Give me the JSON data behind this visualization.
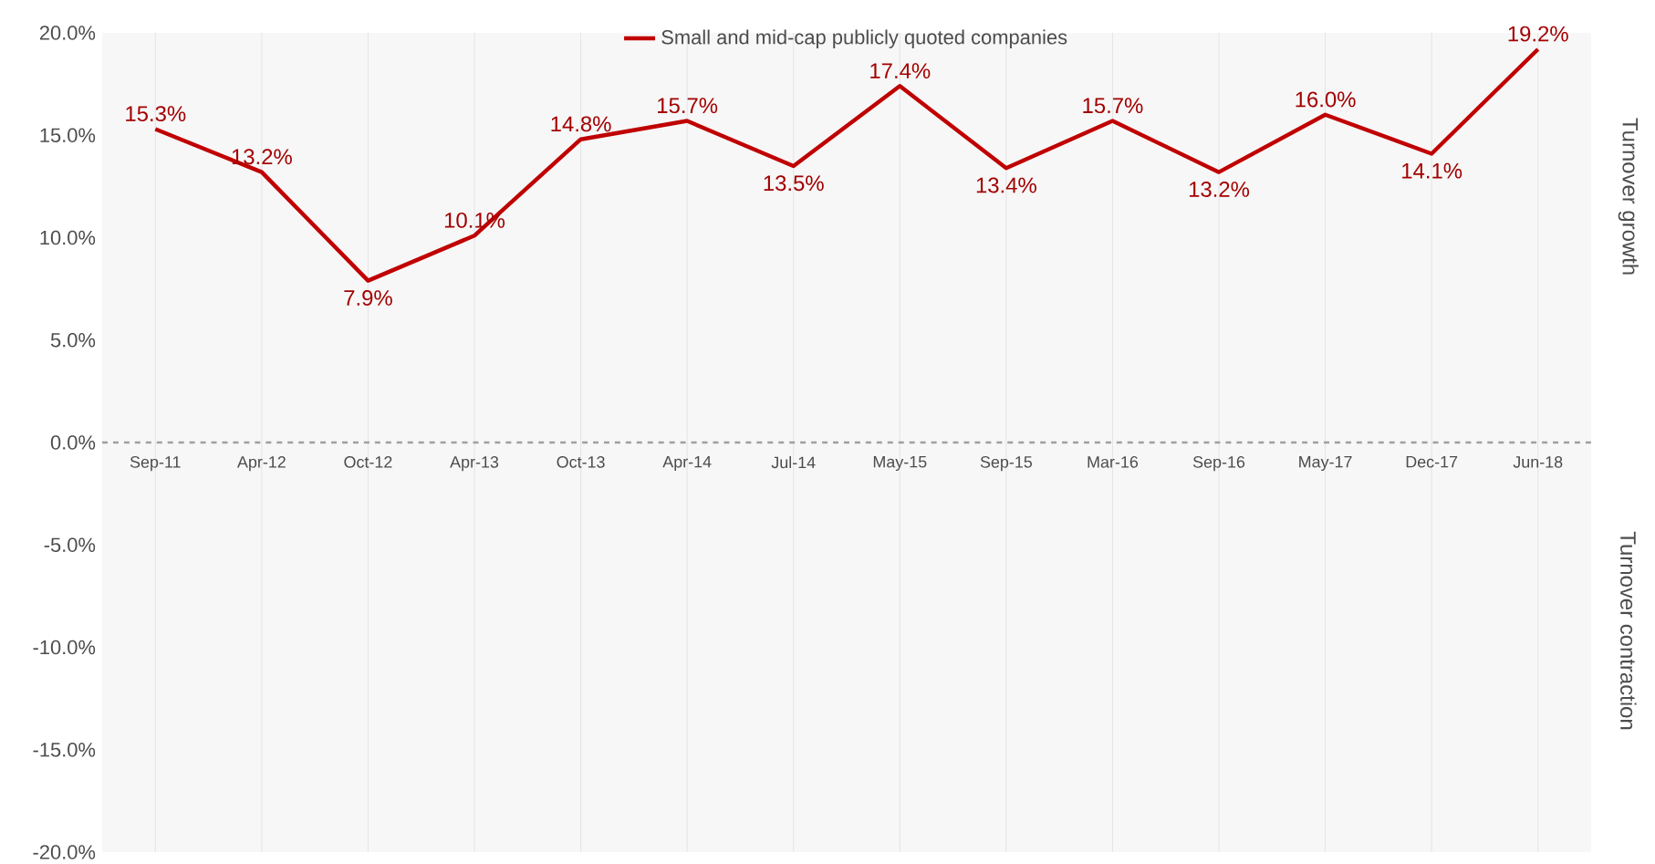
{
  "chart_data": {
    "type": "line",
    "categories": [
      "Sep-11",
      "Apr-12",
      "Oct-12",
      "Apr-13",
      "Oct-13",
      "Apr-14",
      "Jul-14",
      "May-15",
      "Sep-15",
      "Mar-16",
      "Sep-16",
      "May-17",
      "Dec-17",
      "Jun-18"
    ],
    "series": [
      {
        "name": "Small and mid-cap publicly quoted companies",
        "color": "#c00000",
        "values": [
          15.3,
          13.2,
          7.9,
          10.1,
          14.8,
          15.7,
          13.5,
          17.4,
          13.4,
          15.7,
          13.2,
          16.0,
          14.1,
          19.2
        ],
        "value_labels": [
          "15.3%",
          "13.2%",
          "7.9%",
          "10.1%",
          "14.8%",
          "15.7%",
          "13.5%",
          "17.4%",
          "13.4%",
          "15.7%",
          "13.2%",
          "16.0%",
          "14.1%",
          "19.2%"
        ]
      }
    ],
    "ylim": [
      -20,
      20
    ],
    "yticks": [
      {
        "value": -20,
        "label": "-20.0%"
      },
      {
        "value": -15,
        "label": "-15.0%"
      },
      {
        "value": -10,
        "label": "-10.0%"
      },
      {
        "value": -5,
        "label": "-5.0%"
      },
      {
        "value": 0,
        "label": "0.0%"
      },
      {
        "value": 5,
        "label": "5.0%"
      },
      {
        "value": 10,
        "label": "10.0%"
      },
      {
        "value": 15,
        "label": "15.0%"
      },
      {
        "value": 20,
        "label": "20.0%"
      }
    ],
    "grid": "x",
    "legend": "top",
    "marker": "none",
    "line_style": "solid",
    "ref_lines": [
      {
        "axis": "y",
        "value": 0,
        "color": "#a0a0a0",
        "line_style": "dashed"
      }
    ],
    "annotations": [
      "Turnover growth",
      "Turnover contraction"
    ]
  }
}
